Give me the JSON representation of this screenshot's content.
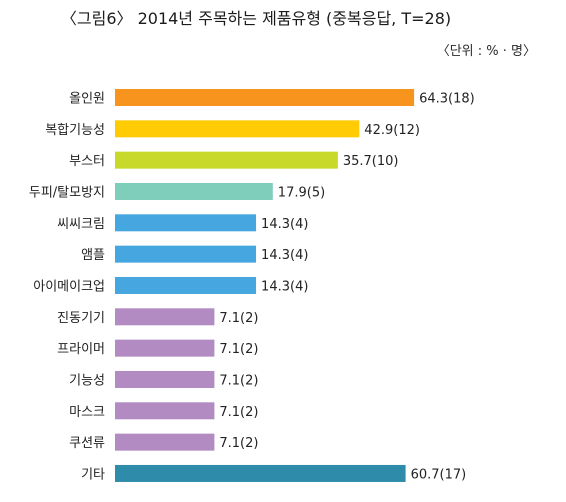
{
  "chart_data": {
    "type": "bar",
    "orientation": "horizontal",
    "title": "〈그림6〉 2014년 주목하는 제품유형 (중복응답, T=28)",
    "unit": "〈단위 : % · 명〉",
    "categories": [
      "올인원",
      "복합기능성",
      "부스터",
      "두피/탈모방지",
      "씨씨크림",
      "앰플",
      "아이메이크업",
      "진동기기",
      "프라이머",
      "기능성",
      "마스크",
      "쿠션류",
      "기타"
    ],
    "values": [
      64.3,
      42.9,
      35.7,
      17.9,
      14.3,
      14.3,
      14.3,
      7.1,
      7.1,
      7.1,
      7.1,
      7.1,
      60.7
    ],
    "counts": [
      18,
      12,
      10,
      5,
      4,
      4,
      4,
      2,
      2,
      2,
      2,
      2,
      17
    ],
    "colors": [
      "#F7941D",
      "#FFCB05",
      "#C8D92B",
      "#7FCDBB",
      "#46A6DF",
      "#46A6DF",
      "#46A6DF",
      "#B18BC1",
      "#B18BC1",
      "#B18BC1",
      "#B18BC1",
      "#B18BC1",
      "#2E8CAA"
    ],
    "grid": false,
    "legend": "none"
  }
}
